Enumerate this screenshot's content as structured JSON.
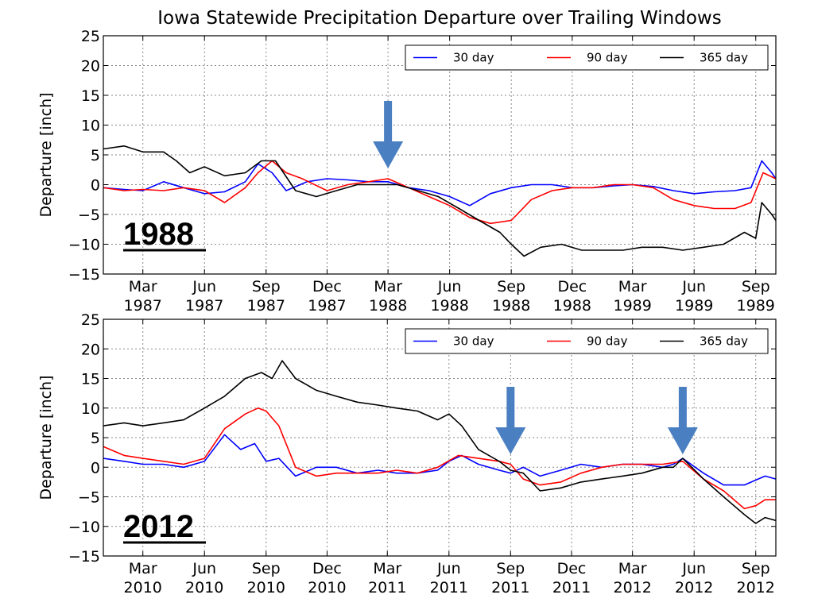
{
  "title": "Iowa Statewide Precipitation Departure over Trailing Windows",
  "colors": {
    "30 day": "#0000ff",
    "90 day": "#ff0000",
    "365 day": "#000000",
    "arrow": "#4a7fc1"
  },
  "chart_data": [
    {
      "type": "line",
      "label": "1988",
      "ylabel": "Departure [inch]",
      "ylim": [
        -15,
        25
      ],
      "yticks": [
        -15,
        -10,
        -5,
        0,
        5,
        10,
        15,
        20,
        25
      ],
      "ytick_labels": [
        "−15",
        "−10",
        "−5",
        "0",
        "5",
        "10",
        "15",
        "20",
        "25"
      ],
      "xlim": [
        "1987-01-01",
        "1989-10-01"
      ],
      "xticks": [
        {
          "date": "1987-03-01",
          "label": [
            "Mar",
            "1987"
          ]
        },
        {
          "date": "1987-06-01",
          "label": [
            "Jun",
            "1987"
          ]
        },
        {
          "date": "1987-09-01",
          "label": [
            "Sep",
            "1987"
          ]
        },
        {
          "date": "1987-12-01",
          "label": [
            "Dec",
            "1987"
          ]
        },
        {
          "date": "1988-03-01",
          "label": [
            "Mar",
            "1988"
          ]
        },
        {
          "date": "1988-06-01",
          "label": [
            "Jun",
            "1988"
          ]
        },
        {
          "date": "1988-09-01",
          "label": [
            "Sep",
            "1988"
          ]
        },
        {
          "date": "1988-12-01",
          "label": [
            "Dec",
            "1988"
          ]
        },
        {
          "date": "1989-03-01",
          "label": [
            "Mar",
            "1989"
          ]
        },
        {
          "date": "1989-06-01",
          "label": [
            "Jun",
            "1989"
          ]
        },
        {
          "date": "1989-09-01",
          "label": [
            "Sep",
            "1989"
          ]
        }
      ],
      "grid": true,
      "legend": "top-right",
      "arrows": [
        "1988-03-01"
      ],
      "series": [
        {
          "name": "30 day",
          "x": [
            "1987-01-01",
            "1987-02-01",
            "1987-03-01",
            "1987-04-01",
            "1987-05-01",
            "1987-06-01",
            "1987-07-01",
            "1987-08-01",
            "1987-08-20",
            "1987-09-10",
            "1987-10-01",
            "1987-11-01",
            "1987-12-01",
            "1988-01-01",
            "1988-02-01",
            "1988-03-01",
            "1988-04-01",
            "1988-05-01",
            "1988-06-01",
            "1988-07-01",
            "1988-08-01",
            "1988-09-01",
            "1988-10-01",
            "1988-11-01",
            "1988-12-01",
            "1989-01-01",
            "1989-02-01",
            "1989-03-01",
            "1989-04-01",
            "1989-05-01",
            "1989-06-01",
            "1989-07-01",
            "1989-08-01",
            "1989-08-25",
            "1989-09-10",
            "1989-09-25",
            "1989-10-01"
          ],
          "y": [
            -0.5,
            -0.8,
            -1.0,
            0.5,
            -0.5,
            -1.5,
            -1.2,
            0.5,
            3.5,
            2.0,
            -1.0,
            0.5,
            1.0,
            0.8,
            0.5,
            0.5,
            -0.5,
            -1.0,
            -2.0,
            -3.5,
            -1.5,
            -0.5,
            0.0,
            0.0,
            -0.5,
            -0.5,
            -0.2,
            0.0,
            -0.3,
            -1.0,
            -1.5,
            -1.2,
            -1.0,
            -0.5,
            4.0,
            2.0,
            1.0
          ]
        },
        {
          "name": "90 day",
          "x": [
            "1987-01-01",
            "1987-02-01",
            "1987-03-01",
            "1987-04-01",
            "1987-05-01",
            "1987-06-01",
            "1987-07-01",
            "1987-08-01",
            "1987-08-20",
            "1987-09-10",
            "1987-10-01",
            "1987-10-25",
            "1987-12-01",
            "1988-01-01",
            "1988-02-01",
            "1988-03-01",
            "1988-04-01",
            "1988-05-01",
            "1988-06-01",
            "1988-07-01",
            "1988-08-01",
            "1988-09-01",
            "1988-10-01",
            "1988-11-01",
            "1988-12-01",
            "1989-01-01",
            "1989-02-01",
            "1989-03-01",
            "1989-04-01",
            "1989-05-01",
            "1989-06-01",
            "1989-07-01",
            "1989-08-01",
            "1989-08-25",
            "1989-09-12",
            "1989-10-01"
          ],
          "y": [
            -0.5,
            -1.0,
            -0.8,
            -1.0,
            -0.5,
            -1.0,
            -3.0,
            -0.5,
            2.0,
            4.0,
            2.0,
            1.0,
            -1.0,
            0.0,
            0.5,
            1.0,
            -0.5,
            -2.0,
            -3.5,
            -5.5,
            -6.5,
            -6.0,
            -2.5,
            -1.0,
            -0.5,
            -0.5,
            0.0,
            0.0,
            -0.5,
            -2.5,
            -3.5,
            -4.0,
            -4.0,
            -3.0,
            2.0,
            1.0
          ]
        },
        {
          "name": "365 day",
          "x": [
            "1987-01-01",
            "1987-02-01",
            "1987-03-01",
            "1987-04-01",
            "1987-04-20",
            "1987-05-10",
            "1987-06-01",
            "1987-07-01",
            "1987-08-01",
            "1987-08-25",
            "1987-09-15",
            "1987-10-15",
            "1987-11-15",
            "1987-12-15",
            "1988-01-15",
            "1988-02-15",
            "1988-03-15",
            "1988-04-15",
            "1988-05-15",
            "1988-06-15",
            "1988-07-15",
            "1988-08-15",
            "1988-09-01",
            "1988-09-20",
            "1988-10-15",
            "1988-11-15",
            "1988-12-15",
            "1989-01-15",
            "1989-02-15",
            "1989-03-15",
            "1989-04-15",
            "1989-05-15",
            "1989-06-15",
            "1989-07-15",
            "1989-08-15",
            "1989-09-01",
            "1989-09-10",
            "1989-09-25",
            "1989-10-01"
          ],
          "y": [
            6.0,
            6.5,
            5.5,
            5.5,
            4.0,
            2.0,
            3.0,
            1.5,
            2.0,
            4.0,
            4.0,
            -1.0,
            -2.0,
            -1.0,
            0.0,
            0.0,
            0.0,
            -1.0,
            -2.0,
            -4.0,
            -6.0,
            -8.0,
            -10.0,
            -12.0,
            -10.5,
            -10.0,
            -11.0,
            -11.0,
            -11.0,
            -10.5,
            -10.5,
            -11.0,
            -10.5,
            -10.0,
            -8.0,
            -9.0,
            -3.0,
            -5.0,
            -6.0
          ]
        }
      ]
    },
    {
      "type": "line",
      "label": "2012",
      "ylabel": "Departure [inch]",
      "ylim": [
        -15,
        25
      ],
      "yticks": [
        -15,
        -10,
        -5,
        0,
        5,
        10,
        15,
        20,
        25
      ],
      "ytick_labels": [
        "−15",
        "−10",
        "−5",
        "0",
        "5",
        "10",
        "15",
        "20",
        "25"
      ],
      "xlim": [
        "2010-01-01",
        "2012-10-01"
      ],
      "xticks": [
        {
          "date": "2010-03-01",
          "label": [
            "Mar",
            "2010"
          ]
        },
        {
          "date": "2010-06-01",
          "label": [
            "Jun",
            "2010"
          ]
        },
        {
          "date": "2010-09-01",
          "label": [
            "Sep",
            "2010"
          ]
        },
        {
          "date": "2010-12-01",
          "label": [
            "Dec",
            "2010"
          ]
        },
        {
          "date": "2011-03-01",
          "label": [
            "Mar",
            "2011"
          ]
        },
        {
          "date": "2011-06-01",
          "label": [
            "Jun",
            "2011"
          ]
        },
        {
          "date": "2011-09-01",
          "label": [
            "Sep",
            "2011"
          ]
        },
        {
          "date": "2011-12-01",
          "label": [
            "Dec",
            "2011"
          ]
        },
        {
          "date": "2012-03-01",
          "label": [
            "Mar",
            "2012"
          ]
        },
        {
          "date": "2012-06-01",
          "label": [
            "Jun",
            "2012"
          ]
        },
        {
          "date": "2012-09-01",
          "label": [
            "Sep",
            "2012"
          ]
        }
      ],
      "grid": true,
      "legend": "top-right",
      "arrows": [
        "2011-09-01",
        "2012-05-15"
      ],
      "series": [
        {
          "name": "30 day",
          "x": [
            "2010-01-01",
            "2010-02-01",
            "2010-03-01",
            "2010-04-01",
            "2010-05-01",
            "2010-06-01",
            "2010-07-01",
            "2010-07-25",
            "2010-08-15",
            "2010-09-01",
            "2010-09-20",
            "2010-10-15",
            "2010-11-15",
            "2010-12-15",
            "2011-01-15",
            "2011-02-15",
            "2011-03-15",
            "2011-04-15",
            "2011-05-15",
            "2011-06-01",
            "2011-06-20",
            "2011-07-15",
            "2011-08-15",
            "2011-09-01",
            "2011-09-20",
            "2011-10-15",
            "2011-11-15",
            "2011-12-15",
            "2012-01-15",
            "2012-02-15",
            "2012-03-15",
            "2012-04-15",
            "2012-05-01",
            "2012-05-15",
            "2012-06-15",
            "2012-07-15",
            "2012-08-15",
            "2012-09-15",
            "2012-10-01"
          ],
          "y": [
            1.5,
            1.0,
            0.5,
            0.5,
            0.0,
            1.0,
            5.5,
            3.0,
            4.0,
            1.0,
            1.5,
            -1.5,
            0.0,
            0.0,
            -1.0,
            -0.5,
            -1.0,
            -1.0,
            -0.5,
            1.0,
            2.0,
            0.5,
            -0.5,
            -1.0,
            0.0,
            -1.5,
            -0.5,
            0.5,
            0.0,
            0.5,
            0.5,
            0.0,
            0.5,
            1.5,
            -1.0,
            -3.0,
            -3.0,
            -1.5,
            -2.0
          ]
        },
        {
          "name": "90 day",
          "x": [
            "2010-01-01",
            "2010-02-01",
            "2010-03-01",
            "2010-04-01",
            "2010-05-01",
            "2010-06-01",
            "2010-07-01",
            "2010-08-01",
            "2010-08-20",
            "2010-09-01",
            "2010-09-20",
            "2010-10-15",
            "2010-11-15",
            "2010-12-15",
            "2011-01-15",
            "2011-02-15",
            "2011-03-15",
            "2011-04-15",
            "2011-05-15",
            "2011-06-15",
            "2011-07-15",
            "2011-08-15",
            "2011-09-01",
            "2011-09-20",
            "2011-10-15",
            "2011-11-15",
            "2011-12-15",
            "2012-01-15",
            "2012-02-15",
            "2012-03-15",
            "2012-04-15",
            "2012-05-15",
            "2012-06-15",
            "2012-07-15",
            "2012-08-15",
            "2012-09-01",
            "2012-09-15",
            "2012-10-01"
          ],
          "y": [
            3.5,
            2.0,
            1.5,
            1.0,
            0.5,
            1.5,
            6.5,
            9.0,
            10.0,
            9.5,
            7.0,
            0.0,
            -1.5,
            -1.0,
            -1.0,
            -1.0,
            -0.5,
            -1.0,
            0.0,
            2.0,
            1.5,
            1.0,
            0.5,
            -2.0,
            -3.0,
            -2.5,
            -1.0,
            0.0,
            0.5,
            0.5,
            0.5,
            1.0,
            -2.0,
            -4.0,
            -7.0,
            -6.5,
            -5.5,
            -5.5
          ]
        },
        {
          "name": "365 day",
          "x": [
            "2010-01-01",
            "2010-02-01",
            "2010-03-01",
            "2010-04-01",
            "2010-05-01",
            "2010-06-01",
            "2010-07-01",
            "2010-08-01",
            "2010-08-25",
            "2010-09-10",
            "2010-09-25",
            "2010-10-15",
            "2010-11-15",
            "2010-12-15",
            "2011-01-15",
            "2011-02-15",
            "2011-03-15",
            "2011-04-15",
            "2011-05-15",
            "2011-06-01",
            "2011-06-20",
            "2011-07-15",
            "2011-08-15",
            "2011-09-01",
            "2011-09-20",
            "2011-10-15",
            "2011-11-15",
            "2011-12-15",
            "2012-01-15",
            "2012-02-15",
            "2012-03-15",
            "2012-04-15",
            "2012-05-01",
            "2012-05-15",
            "2012-06-15",
            "2012-07-15",
            "2012-08-15",
            "2012-09-01",
            "2012-09-15",
            "2012-10-01"
          ],
          "y": [
            7.0,
            7.5,
            7.0,
            7.5,
            8.0,
            10.0,
            12.0,
            15.0,
            16.0,
            15.0,
            18.0,
            15.0,
            13.0,
            12.0,
            11.0,
            10.5,
            10.0,
            9.5,
            8.0,
            9.0,
            7.0,
            3.0,
            1.0,
            -0.5,
            -1.0,
            -4.0,
            -3.5,
            -2.5,
            -2.0,
            -1.5,
            -1.0,
            0.0,
            0.0,
            1.5,
            -2.0,
            -5.0,
            -8.0,
            -9.5,
            -8.5,
            -9.0
          ]
        }
      ]
    }
  ]
}
